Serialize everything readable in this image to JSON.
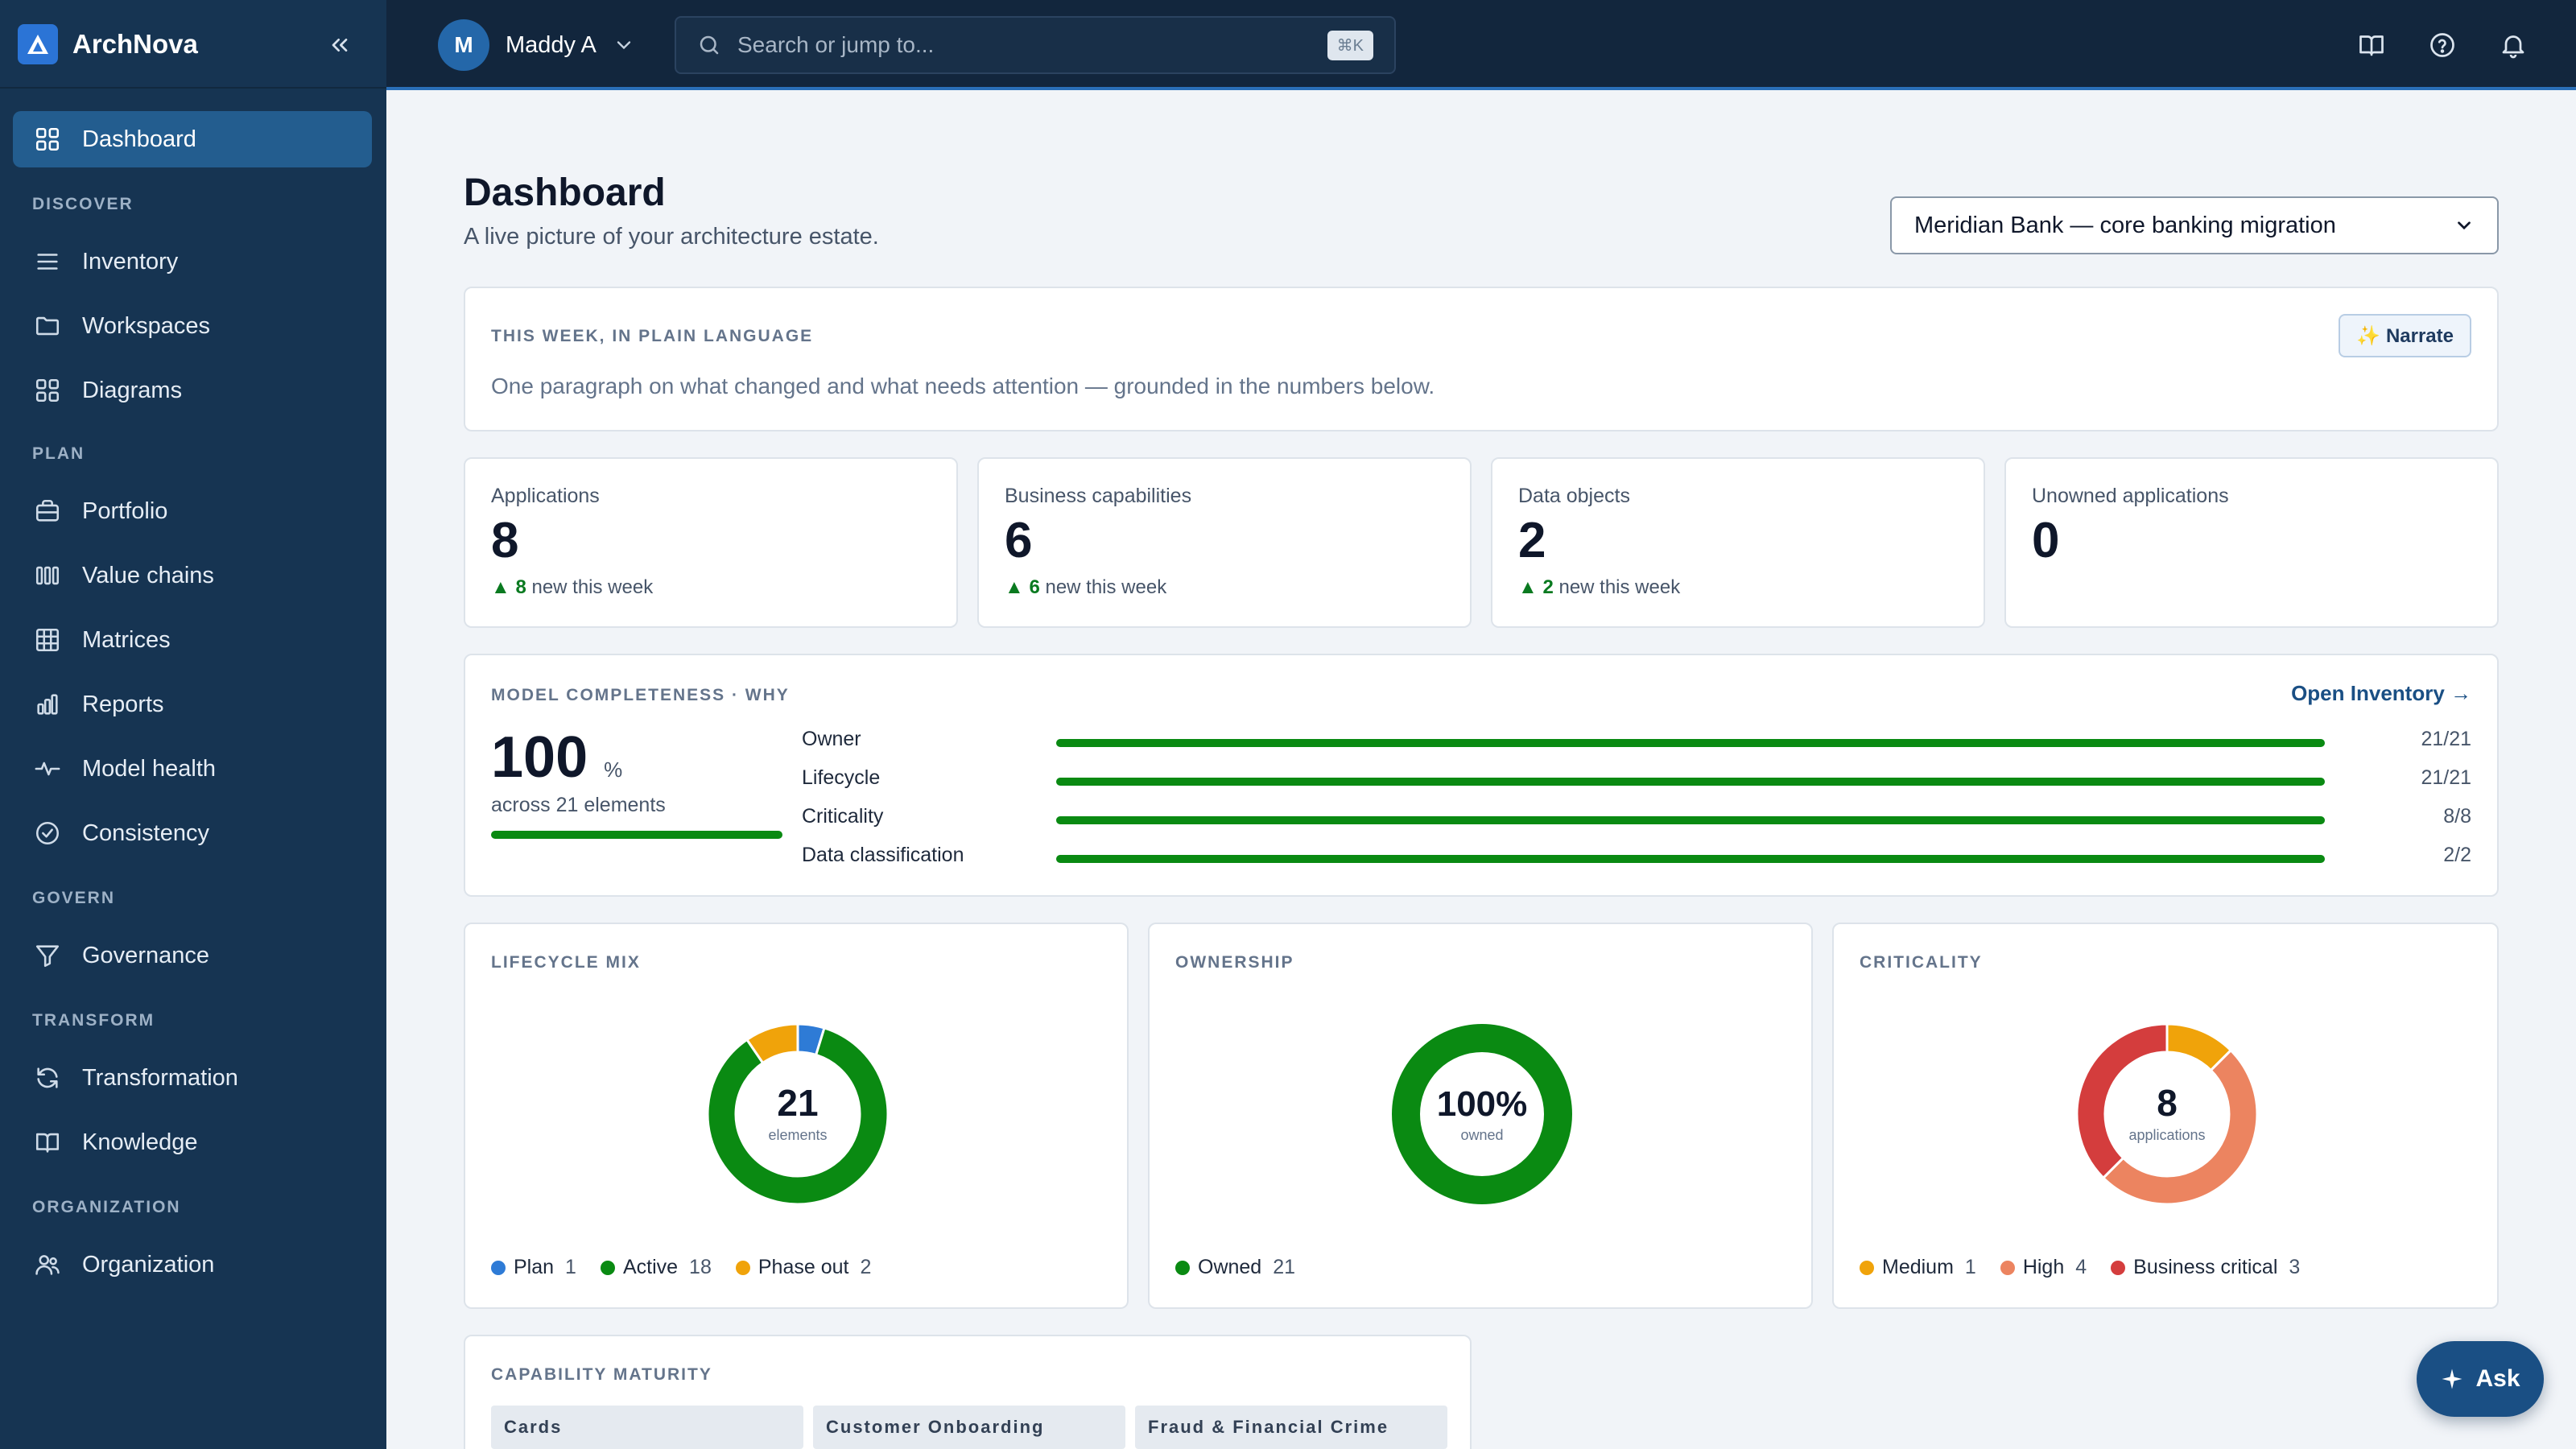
{
  "app": {
    "name": "ArchNova"
  },
  "sidebar": {
    "items": [
      {
        "label": "Dashboard",
        "icon": "grid-icon",
        "active": true
      },
      {
        "label": "Inventory",
        "icon": "list-icon"
      },
      {
        "label": "Workspaces",
        "icon": "folder-icon"
      },
      {
        "label": "Diagrams",
        "icon": "grid-icon"
      },
      {
        "label": "Portfolio",
        "icon": "briefcase-icon"
      },
      {
        "label": "Value chains",
        "icon": "columns-icon"
      },
      {
        "label": "Matrices",
        "icon": "table-icon"
      },
      {
        "label": "Reports",
        "icon": "bar-chart-icon"
      },
      {
        "label": "Model health",
        "icon": "pulse-icon"
      },
      {
        "label": "Consistency",
        "icon": "check-circle-icon"
      },
      {
        "label": "Governance",
        "icon": "filter-icon"
      },
      {
        "label": "Transformation",
        "icon": "refresh-icon"
      },
      {
        "label": "Knowledge",
        "icon": "book-icon"
      },
      {
        "label": "Organization",
        "icon": "users-icon"
      }
    ],
    "sections": {
      "discover": "DISCOVER",
      "plan": "PLAN",
      "govern": "GOVERN",
      "transform": "TRANSFORM",
      "organization": "ORGANIZATION"
    }
  },
  "topbar": {
    "user_initial": "M",
    "user_name": "Maddy A",
    "search_placeholder": "Search or jump to...",
    "search_shortcut": "⌘K"
  },
  "page": {
    "title": "Dashboard",
    "subtitle": "A live picture of your architecture estate.",
    "workspace": "Meridian Bank — core banking migration"
  },
  "summary": {
    "eyebrow": "THIS WEEK, IN PLAIN LANGUAGE",
    "text": "One paragraph on what changed and what needs attention — grounded in the numbers below.",
    "button": "✨ Narrate"
  },
  "stats": [
    {
      "label": "Applications",
      "value": "8",
      "delta": "8",
      "delta_text": "new this week"
    },
    {
      "label": "Business capabilities",
      "value": "6",
      "delta": "6",
      "delta_text": "new this week"
    },
    {
      "label": "Data objects",
      "value": "2",
      "delta": "2",
      "delta_text": "new this week"
    },
    {
      "label": "Unowned applications",
      "value": "0"
    }
  ],
  "completeness": {
    "eyebrow": "MODEL COMPLETENESS · WHY",
    "link": "Open Inventory →",
    "value": "100",
    "unit": "%",
    "caption": "across 21 elements",
    "percent": 100,
    "rows": [
      {
        "label": "Owner",
        "count": "21/21",
        "fraction": 1
      },
      {
        "label": "Lifecycle",
        "count": "21/21",
        "fraction": 1
      },
      {
        "label": "Criticality",
        "count": "8/8",
        "fraction": 1
      },
      {
        "label": "Data classification",
        "count": "2/2",
        "fraction": 1
      }
    ]
  },
  "colors": {
    "green": "#0a8a12",
    "blue": "#2e7bd6",
    "amber": "#f0a30a",
    "orange": "#ec8460",
    "red": "#d43d3d"
  },
  "lifecycle": {
    "eyebrow": "LIFECYCLE MIX",
    "center_value": "21",
    "center_label": "elements",
    "legend": [
      {
        "name": "Plan",
        "count": "1",
        "color": "#2e7bd6"
      },
      {
        "name": "Active",
        "count": "18",
        "color": "#0a8a12"
      },
      {
        "name": "Phase out",
        "count": "2",
        "color": "#f0a30a"
      }
    ]
  },
  "ownership": {
    "eyebrow": "OWNERSHIP",
    "center_value": "100%",
    "center_label": "owned",
    "legend": [
      {
        "name": "Owned",
        "count": "21",
        "color": "#0a8a12"
      }
    ]
  },
  "criticality": {
    "eyebrow": "CRITICALITY",
    "center_value": "8",
    "center_label": "applications",
    "legend": [
      {
        "name": "Medium",
        "count": "1",
        "color": "#f0a30a"
      },
      {
        "name": "High",
        "count": "4",
        "color": "#ec8460"
      },
      {
        "name": "Business critical",
        "count": "3",
        "color": "#d43d3d"
      }
    ]
  },
  "chart_data": [
    {
      "type": "pie",
      "categories": [
        "Plan",
        "Active",
        "Phase out"
      ],
      "values": [
        1,
        18,
        2
      ],
      "start": "Plan"
    },
    {
      "type": "pie",
      "categories": [
        "Owned"
      ],
      "values": [
        21
      ]
    },
    {
      "type": "pie",
      "categories": [
        "Medium",
        "High",
        "Business critical"
      ],
      "values": [
        1,
        4,
        3
      ]
    }
  ],
  "capability": {
    "eyebrow": "CAPABILITY MATURITY",
    "chips": [
      "Cards",
      "Customer Onboarding",
      "Fraud & Financial Crime"
    ]
  },
  "ask": {
    "label": "Ask"
  }
}
